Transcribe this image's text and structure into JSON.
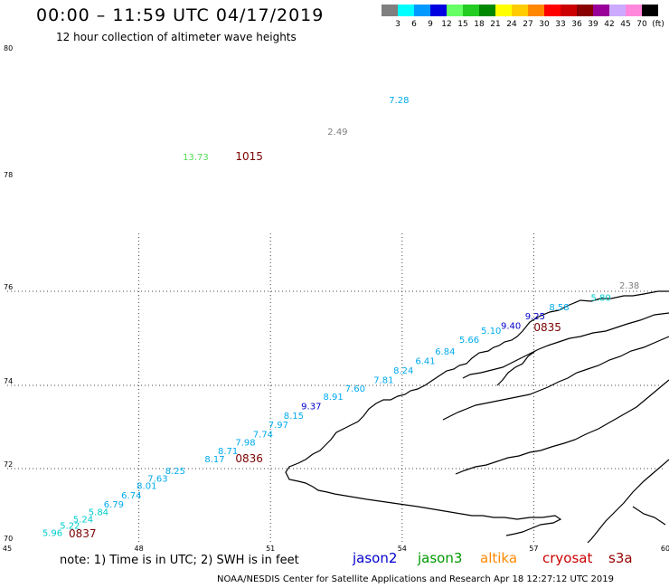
{
  "header": {
    "title": "00:00 – 11:59 UTC 04/17/2019",
    "subtitle": "12 hour collection of altimeter wave heights"
  },
  "color_scale": {
    "unit": "(ft)",
    "bins": [
      {
        "label": "3",
        "color": "#7f7f7f"
      },
      {
        "label": "6",
        "color": "#00ffff"
      },
      {
        "label": "9",
        "color": "#0099ff"
      },
      {
        "label": "12",
        "color": "#0000e0"
      },
      {
        "label": "15",
        "color": "#66ff66"
      },
      {
        "label": "18",
        "color": "#22cc22"
      },
      {
        "label": "21",
        "color": "#008800"
      },
      {
        "label": "24",
        "color": "#ffff00"
      },
      {
        "label": "27",
        "color": "#ffcc00"
      },
      {
        "label": "30",
        "color": "#ff8800"
      },
      {
        "label": "33",
        "color": "#ff0000"
      },
      {
        "label": "36",
        "color": "#cc0000"
      },
      {
        "label": "39",
        "color": "#880000"
      },
      {
        "label": "42",
        "color": "#990099"
      },
      {
        "label": "45",
        "color": "#ccaaff"
      },
      {
        "label": "70",
        "color": "#ff88dd"
      },
      {
        "label": "",
        "color": "#000000"
      }
    ]
  },
  "map": {
    "lon_ticks": [
      "45",
      "48",
      "51",
      "54",
      "57",
      "60"
    ],
    "lat_ticks": [
      "70",
      "72",
      "74",
      "76",
      "78",
      "80"
    ],
    "wave_heights": [
      {
        "value": "5.96",
        "lon": 45.8,
        "lat": 70.18,
        "color": "#00cccc"
      },
      {
        "value": "5.22",
        "lon": 46.2,
        "lat": 70.38,
        "color": "#00cccc"
      },
      {
        "value": "5.24",
        "lon": 46.5,
        "lat": 70.55,
        "color": "#00cccc"
      },
      {
        "value": "5.84",
        "lon": 46.85,
        "lat": 70.75,
        "color": "#00cccc"
      },
      {
        "value": "6.79",
        "lon": 47.2,
        "lat": 70.95,
        "color": "#00aaee"
      },
      {
        "value": "6.74",
        "lon": 47.6,
        "lat": 71.2,
        "color": "#00aaee"
      },
      {
        "value": "8.01",
        "lon": 47.95,
        "lat": 71.45,
        "color": "#00aaee"
      },
      {
        "value": "7.63",
        "lon": 48.2,
        "lat": 71.65,
        "color": "#00aaee"
      },
      {
        "value": "8.25",
        "lon": 48.6,
        "lat": 71.85,
        "color": "#00aaee"
      },
      {
        "value": "8.17",
        "lon": 49.5,
        "lat": 72.15,
        "color": "#00aaee"
      },
      {
        "value": "8.71",
        "lon": 49.8,
        "lat": 72.35,
        "color": "#00aaee"
      },
      {
        "value": "7.98",
        "lon": 50.2,
        "lat": 72.55,
        "color": "#00aaee"
      },
      {
        "value": "7.74",
        "lon": 50.6,
        "lat": 72.75,
        "color": "#00aaee"
      },
      {
        "value": "7.97",
        "lon": 50.95,
        "lat": 72.98,
        "color": "#00aaee"
      },
      {
        "value": "8.15",
        "lon": 51.3,
        "lat": 73.2,
        "color": "#00aaee"
      },
      {
        "value": "9.37",
        "lon": 51.7,
        "lat": 73.42,
        "color": "#0000cc"
      },
      {
        "value": "8.91",
        "lon": 52.2,
        "lat": 73.65,
        "color": "#00aaee"
      },
      {
        "value": "7.60",
        "lon": 52.7,
        "lat": 73.85,
        "color": "#00aaee"
      },
      {
        "value": "7.81",
        "lon": 53.35,
        "lat": 74.05,
        "color": "#00aaee"
      },
      {
        "value": "8.24",
        "lon": 53.8,
        "lat": 74.25,
        "color": "#00aaee"
      },
      {
        "value": "6.41",
        "lon": 54.3,
        "lat": 74.45,
        "color": "#00aaee"
      },
      {
        "value": "6.84",
        "lon": 54.75,
        "lat": 74.65,
        "color": "#00aaee"
      },
      {
        "value": "5.66",
        "lon": 55.3,
        "lat": 74.9,
        "color": "#00aaee"
      },
      {
        "value": "5.10",
        "lon": 55.8,
        "lat": 75.1,
        "color": "#00aaee"
      },
      {
        "value": "9.40",
        "lon": 56.25,
        "lat": 75.2,
        "color": "#0000cc"
      },
      {
        "value": "9.25",
        "lon": 56.8,
        "lat": 75.4,
        "color": "#0000cc"
      },
      {
        "value": "8.58",
        "lon": 57.35,
        "lat": 75.6,
        "color": "#00aaee"
      },
      {
        "value": "5.80",
        "lon": 58.3,
        "lat": 75.8,
        "color": "#00cccc"
      },
      {
        "value": "2.38",
        "lon": 58.95,
        "lat": 76.05,
        "color": "#808080"
      },
      {
        "value": "7.28",
        "lon": 53.7,
        "lat": 79.2,
        "color": "#00aaee"
      },
      {
        "value": "2.49",
        "lon": 52.3,
        "lat": 78.7,
        "color": "#808080"
      },
      {
        "value": "13.73",
        "lon": 49.0,
        "lat": 78.3,
        "color": "#55dd55"
      }
    ],
    "pass_times": [
      {
        "value": "0837",
        "lon": 46.4,
        "lat": 70.15
      },
      {
        "value": "0836",
        "lon": 50.2,
        "lat": 72.15
      },
      {
        "value": "0835",
        "lon": 57.0,
        "lat": 75.15
      },
      {
        "value": "1015",
        "lon": 50.2,
        "lat": 78.3
      }
    ]
  },
  "footer": {
    "note": "note: 1) Time is in UTC; 2) SWH is in feet",
    "satellites": [
      {
        "name": "jason2",
        "color": "#0000cc"
      },
      {
        "name": "jason3",
        "color": "#009900"
      },
      {
        "name": "altika",
        "color": "#ff8800"
      },
      {
        "name": "cryosat",
        "color": "#cc0000"
      },
      {
        "name": "s3a",
        "color": "#990000"
      }
    ],
    "credit": "NOAA/NESDIS Center for Satellite Applications and Research    Apr 18 12:27:12 UTC 2019"
  }
}
